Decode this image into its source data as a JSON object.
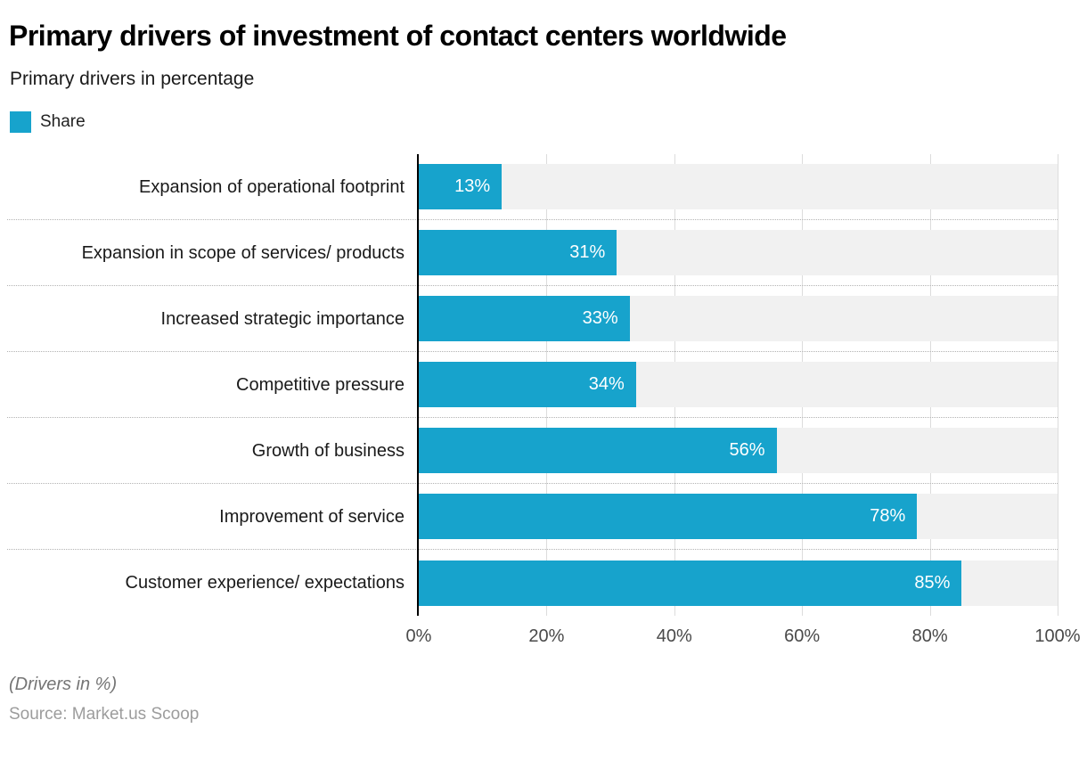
{
  "header": {
    "title": "Primary drivers of investment of contact centers worldwide",
    "subtitle": "Primary drivers in percentage"
  },
  "legend": {
    "label": "Share",
    "color": "#17a3cc"
  },
  "chart_data": {
    "type": "bar",
    "orientation": "horizontal",
    "title": "Primary drivers of investment of contact centers worldwide",
    "subtitle": "Primary drivers in percentage",
    "series_name": "Share",
    "categories": [
      "Expansion of operational footprint",
      "Expansion in scope of services/ products",
      "Increased strategic importance",
      "Competitive pressure",
      "Growth of business",
      "Improvement of service",
      "Customer experience/ expectations"
    ],
    "values": [
      13,
      31,
      33,
      34,
      56,
      78,
      85
    ],
    "value_labels": [
      "13%",
      "31%",
      "33%",
      "34%",
      "56%",
      "78%",
      "85%"
    ],
    "xlim": [
      0,
      100
    ],
    "x_ticks": [
      "0%",
      "20%",
      "40%",
      "60%",
      "80%",
      "100%"
    ],
    "x_tick_values": [
      0,
      20,
      40,
      60,
      80,
      100
    ],
    "bar_color": "#17a3cc",
    "track_color": "#f1f1f1",
    "grid": true,
    "legend_position": "top-left"
  },
  "footer": {
    "note": "(Drivers in %)",
    "source": "Source: Market.us Scoop"
  }
}
